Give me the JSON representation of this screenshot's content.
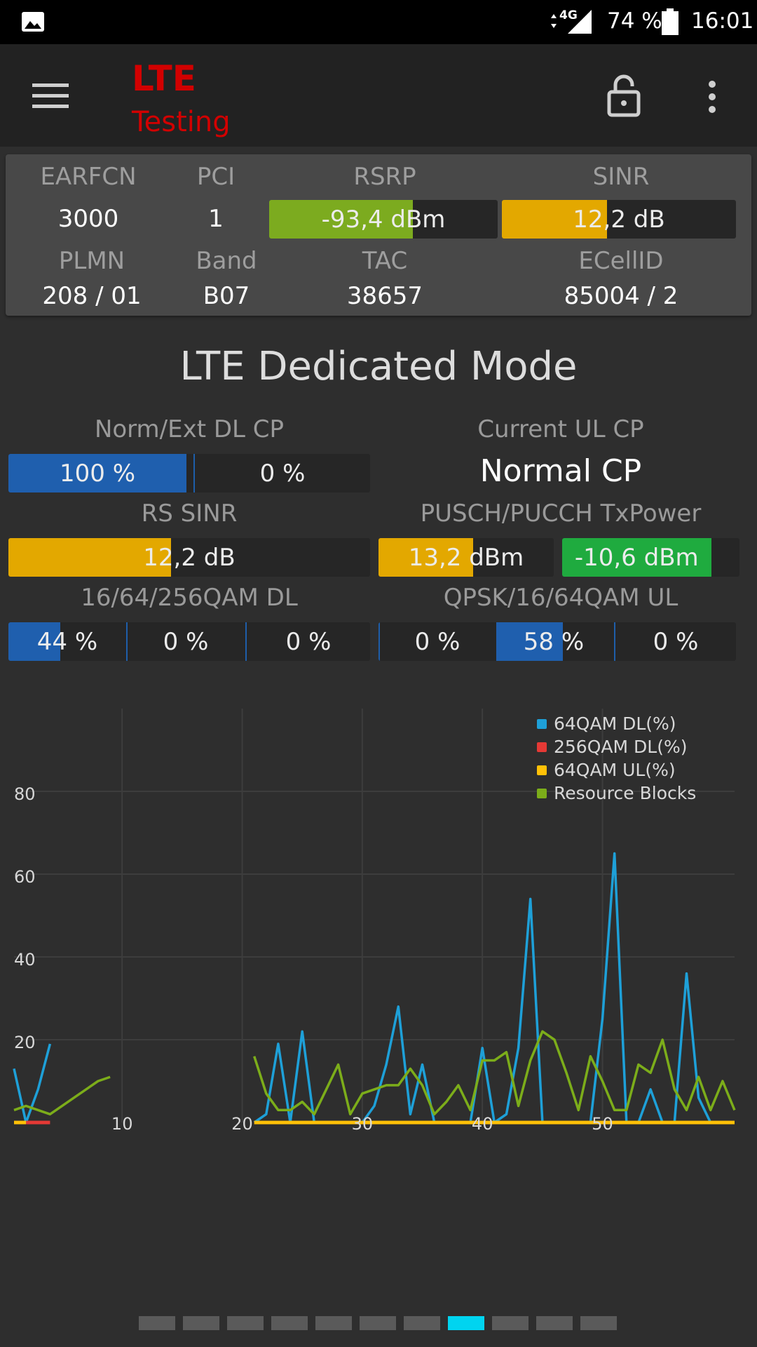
{
  "status_bar": {
    "network": "4G",
    "battery": "74 %",
    "time": "16:01",
    "icons": [
      "image-icon",
      "network-signal-icon",
      "battery-icon"
    ]
  },
  "app_bar": {
    "title_line1": "LTE",
    "title_line2": "Testing",
    "icons": [
      "menu-icon",
      "lock-icon",
      "more-vert-icon"
    ]
  },
  "cell_info": {
    "earfcn_label": "EARFCN",
    "earfcn": "3000",
    "pci_label": "PCI",
    "pci": "1",
    "rsrp_label": "RSRP",
    "rsrp": "-93,4 dBm",
    "rsrp_fill": 0.63,
    "sinr_label": "SINR",
    "sinr": "12,2 dB",
    "sinr_fill": 0.45,
    "plmn_label": "PLMN",
    "plmn": "208 / 01",
    "band_label": "Band",
    "band": "B07",
    "tac_label": "TAC",
    "tac": "38657",
    "ecellid_label": "ECellID",
    "ecellid": "85004 / 2"
  },
  "heading": "LTE Dedicated Mode",
  "dedicated": {
    "cp_dl_label": "Norm/Ext DL CP",
    "cp_dl_normal": "100 %",
    "cp_dl_ext": "0 %",
    "cp_ul_label": "Current UL CP",
    "cp_ul": "Normal CP",
    "rs_sinr_label": "RS SINR",
    "rs_sinr": "12,2 dB",
    "rs_sinr_fill": 0.45,
    "txpower_label": "PUSCH/PUCCH TxPower",
    "pusch": "13,2 dBm",
    "pusch_fill": 0.54,
    "pucch": "-10,6 dBm",
    "pucch_fill": 0.84,
    "qam_dl_label": "16/64/256QAM DL",
    "qam16_dl": "44 %",
    "qam16_dl_fill": 0.44,
    "qam64_dl": "0 %",
    "qam256_dl": "0 %",
    "qam_ul_label": "QPSK/16/64QAM UL",
    "qpsk_ul": "0 %",
    "qam16_ul": "58 %",
    "qam16_ul_fill": 0.58,
    "qam64_ul": "0 %"
  },
  "chart_data": {
    "type": "line",
    "xlim": [
      1,
      61
    ],
    "ylim": [
      0,
      100
    ],
    "x_ticks": [
      "10",
      "20",
      "30",
      "40",
      "50"
    ],
    "y_ticks": [
      "20",
      "40",
      "60",
      "80"
    ],
    "legend_position": "top-right",
    "grid": true,
    "series": [
      {
        "name": "64QAM DL(%)",
        "color": "#1ea0d8",
        "segments": [
          [
            [
              1,
              13
            ],
            [
              2,
              0
            ],
            [
              3,
              8
            ],
            [
              4,
              19
            ]
          ],
          [
            [
              21,
              0
            ],
            [
              22,
              2
            ],
            [
              23,
              19
            ],
            [
              24,
              0
            ],
            [
              25,
              22
            ],
            [
              26,
              0
            ],
            [
              27,
              0
            ],
            [
              28,
              0
            ],
            [
              29,
              0
            ],
            [
              30,
              0
            ],
            [
              31,
              4
            ],
            [
              32,
              14
            ],
            [
              33,
              28
            ],
            [
              34,
              2
            ],
            [
              35,
              14
            ],
            [
              36,
              0
            ],
            [
              37,
              0
            ],
            [
              38,
              0
            ],
            [
              39,
              0
            ],
            [
              40,
              18
            ],
            [
              41,
              0
            ],
            [
              42,
              2
            ],
            [
              43,
              18
            ],
            [
              44,
              54
            ],
            [
              45,
              0
            ],
            [
              46,
              0
            ],
            [
              47,
              0
            ],
            [
              48,
              0
            ],
            [
              49,
              0
            ],
            [
              50,
              25
            ],
            [
              51,
              65
            ],
            [
              52,
              0
            ],
            [
              53,
              0
            ],
            [
              54,
              8
            ],
            [
              55,
              0
            ],
            [
              56,
              0
            ],
            [
              57,
              36
            ],
            [
              58,
              6
            ],
            [
              59,
              0
            ]
          ]
        ]
      },
      {
        "name": "256QAM DL(%)",
        "color": "#e53935",
        "segments": [
          [
            [
              2,
              0
            ],
            [
              4,
              0
            ]
          ],
          [
            [
              21,
              0
            ],
            [
              61,
              0
            ]
          ]
        ]
      },
      {
        "name": "64QAM UL(%)",
        "color": "#ffc107",
        "segments": [
          [
            [
              1,
              0
            ],
            [
              2,
              0
            ]
          ],
          [
            [
              21,
              0
            ],
            [
              61,
              0
            ]
          ]
        ]
      },
      {
        "name": "Resource Blocks",
        "color": "#7cad1a",
        "segments": [
          [
            [
              1,
              3
            ],
            [
              2,
              4
            ],
            [
              3,
              3
            ],
            [
              4,
              2
            ],
            [
              5,
              4
            ],
            [
              6,
              6
            ],
            [
              7,
              8
            ],
            [
              8,
              10
            ],
            [
              9,
              11
            ]
          ],
          [
            [
              21,
              16
            ],
            [
              22,
              7
            ],
            [
              23,
              3
            ],
            [
              24,
              3
            ],
            [
              25,
              5
            ],
            [
              26,
              2
            ],
            [
              27,
              8
            ],
            [
              28,
              14
            ],
            [
              29,
              2
            ],
            [
              30,
              7
            ],
            [
              31,
              8
            ],
            [
              32,
              9
            ],
            [
              33,
              9
            ],
            [
              34,
              13
            ],
            [
              35,
              9
            ],
            [
              36,
              2
            ],
            [
              37,
              5
            ],
            [
              38,
              9
            ],
            [
              39,
              3
            ],
            [
              40,
              15
            ],
            [
              41,
              15
            ],
            [
              42,
              17
            ],
            [
              43,
              4
            ],
            [
              44,
              15
            ],
            [
              45,
              22
            ],
            [
              46,
              20
            ],
            [
              47,
              12
            ],
            [
              48,
              3
            ],
            [
              49,
              16
            ],
            [
              50,
              10
            ],
            [
              51,
              3
            ],
            [
              52,
              3
            ],
            [
              53,
              14
            ],
            [
              54,
              12
            ],
            [
              55,
              20
            ],
            [
              56,
              8
            ],
            [
              57,
              3
            ],
            [
              58,
              11
            ],
            [
              59,
              3
            ],
            [
              60,
              10
            ],
            [
              61,
              3
            ]
          ]
        ]
      }
    ]
  },
  "pager": {
    "count": 11,
    "active": 7
  }
}
